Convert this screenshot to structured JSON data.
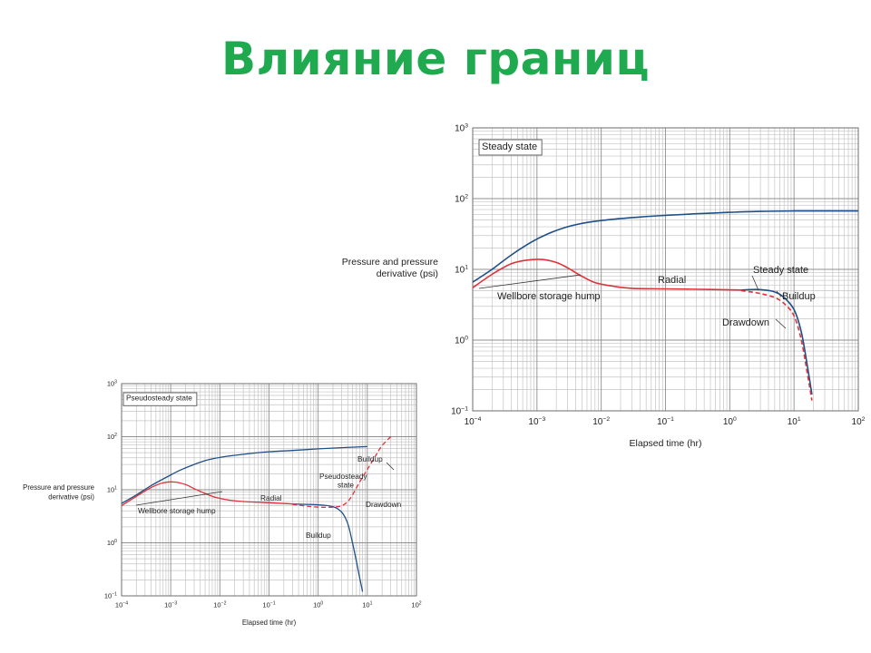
{
  "slide": {
    "title": "Влияние границ",
    "title_color": "#1faa4f"
  },
  "colors": {
    "pressure": "#1f4f88",
    "derivative": "#e0313a",
    "grid_major": "#8f8f8f",
    "grid_minor": "#c4c4c4"
  },
  "chart_data": [
    {
      "type": "line",
      "xlabel": "Elapsed time (hr)",
      "ylabel": [
        "Pressure and pressure",
        "derivative (psi)"
      ],
      "xscale": "log",
      "yscale": "log",
      "xlim": [
        0.0001,
        100
      ],
      "ylim": [
        0.1,
        1000
      ],
      "grid": true,
      "x_ticks": [
        {
          "value": 0.0001,
          "base": "10",
          "exp": "−4"
        },
        {
          "value": 0.001,
          "base": "10",
          "exp": "−3"
        },
        {
          "value": 0.01,
          "base": "10",
          "exp": "−2"
        },
        {
          "value": 0.1,
          "base": "10",
          "exp": "−1"
        },
        {
          "value": 1,
          "base": "10",
          "exp": "0"
        },
        {
          "value": 10,
          "base": "10",
          "exp": "1"
        },
        {
          "value": 100,
          "base": "10",
          "exp": "2"
        }
      ],
      "y_ticks": [
        {
          "value": 0.1,
          "base": "10",
          "exp": "−1"
        },
        {
          "value": 1,
          "base": "10",
          "exp": "0"
        },
        {
          "value": 10,
          "base": "10",
          "exp": "1"
        },
        {
          "value": 100,
          "base": "10",
          "exp": "2"
        },
        {
          "value": 1000,
          "base": "10",
          "exp": "3"
        }
      ],
      "series": [
        {
          "role": "pressure",
          "style": "solid",
          "x": [
            0.0001,
            0.0002,
            0.0004,
            0.0008,
            0.0015,
            0.003,
            0.006,
            0.015,
            0.04,
            0.1,
            0.3,
            1,
            3,
            10,
            30,
            100
          ],
          "y": [
            6.6,
            10,
            16,
            24,
            32,
            40,
            46,
            51,
            55,
            58,
            61,
            64,
            66,
            67,
            67,
            67
          ]
        },
        {
          "role": "derivative",
          "style": "solid",
          "x": [
            0.0001,
            0.0002,
            0.0004,
            0.0007,
            0.0012,
            0.002,
            0.003,
            0.005,
            0.008,
            0.015,
            0.03,
            0.1,
            0.5,
            1.5
          ],
          "y": [
            5.5,
            8.5,
            12,
            13.5,
            13.8,
            12.5,
            10.5,
            8,
            6.5,
            5.8,
            5.4,
            5.3,
            5.2,
            5.1
          ]
        },
        {
          "role": "pressure",
          "style": "solid",
          "x": [
            1.5,
            2.5,
            3.5,
            5,
            7,
            10,
            13,
            16,
            19
          ],
          "y": [
            5.1,
            5.2,
            5.1,
            4.8,
            4.0,
            2.7,
            1.3,
            0.45,
            0.17
          ]
        },
        {
          "role": "derivative",
          "style": "dashed",
          "x": [
            1.5,
            2.5,
            3.5,
            5,
            7,
            10,
            13,
            16,
            19
          ],
          "y": [
            5.0,
            4.7,
            4.4,
            4.0,
            3.3,
            2.2,
            1.0,
            0.35,
            0.14
          ]
        }
      ],
      "annotations": [
        {
          "id": "label-steady-state-box",
          "text": "Steady state",
          "boxed": true
        },
        {
          "id": "label-wellbore-storage-hump",
          "text": "Wellbore storage hump"
        },
        {
          "id": "label-radial",
          "text": "Radial"
        },
        {
          "id": "label-steady-state",
          "text": "Steady state"
        },
        {
          "id": "label-buildup",
          "text": "Buildup"
        },
        {
          "id": "label-drawdown",
          "text": "Drawdown"
        }
      ]
    },
    {
      "type": "line",
      "xlabel": "Elapsed time (hr)",
      "ylabel": [
        "Pressure and pressure",
        "derivative (psi)"
      ],
      "xscale": "log",
      "yscale": "log",
      "xlim": [
        0.0001,
        100
      ],
      "ylim": [
        0.1,
        1000
      ],
      "grid": true,
      "x_ticks": [
        {
          "value": 0.0001,
          "base": "10",
          "exp": "−4"
        },
        {
          "value": 0.001,
          "base": "10",
          "exp": "−3"
        },
        {
          "value": 0.01,
          "base": "10",
          "exp": "−2"
        },
        {
          "value": 0.1,
          "base": "10",
          "exp": "−1"
        },
        {
          "value": 1,
          "base": "10",
          "exp": "0"
        },
        {
          "value": 10,
          "base": "10",
          "exp": "1"
        },
        {
          "value": 100,
          "base": "10",
          "exp": "2"
        }
      ],
      "y_ticks": [
        {
          "value": 0.1,
          "base": "10",
          "exp": "−1"
        },
        {
          "value": 1,
          "base": "10",
          "exp": "0"
        },
        {
          "value": 10,
          "base": "10",
          "exp": "1"
        },
        {
          "value": 100,
          "base": "10",
          "exp": "2"
        },
        {
          "value": 1000,
          "base": "10",
          "exp": "3"
        }
      ],
      "series": [
        {
          "role": "pressure",
          "style": "solid",
          "x": [
            0.0001,
            0.0002,
            0.0004,
            0.0008,
            0.0015,
            0.003,
            0.006,
            0.015,
            0.04,
            0.1,
            0.3,
            1,
            3,
            10
          ],
          "y": [
            5.5,
            8,
            12,
            17,
            23,
            30,
            37,
            43,
            48,
            52,
            55,
            59,
            62,
            65
          ]
        },
        {
          "role": "derivative",
          "style": "solid",
          "x": [
            0.0001,
            0.0002,
            0.0004,
            0.0007,
            0.0012,
            0.002,
            0.003,
            0.005,
            0.008,
            0.015,
            0.03,
            0.1,
            0.3
          ],
          "y": [
            5,
            7.5,
            11,
            13.5,
            14,
            12.5,
            10.5,
            8.5,
            7.2,
            6.4,
            6,
            5.7,
            5.4
          ]
        },
        {
          "role": "pressure",
          "style": "solid",
          "x": [
            0.3,
            1,
            2,
            3,
            4,
            5,
            6,
            7,
            8
          ],
          "y": [
            5.4,
            5.2,
            4.8,
            3.8,
            2.3,
            1.0,
            0.45,
            0.22,
            0.12
          ]
        },
        {
          "role": "derivative",
          "style": "dashed",
          "x": [
            0.3,
            0.6,
            1,
            2,
            3,
            4,
            5,
            7,
            10,
            15,
            20,
            30
          ],
          "y": [
            5.3,
            4.9,
            4.7,
            4.7,
            5.0,
            6.0,
            8.0,
            14,
            24,
            45,
            68,
            100
          ]
        }
      ],
      "annotations": [
        {
          "id": "label-pseudosteady-state-box",
          "text": "Pseudosteady state",
          "boxed": true
        },
        {
          "id": "label-wellbore-storage-hump",
          "text": "Wellbore storage hump"
        },
        {
          "id": "label-radial",
          "text": "Radial"
        },
        {
          "id": "label-buildup-upper",
          "text": "Buildup"
        },
        {
          "id": "label-pseudosteady-state",
          "text": "Pseudosteady state"
        },
        {
          "id": "label-drawdown",
          "text": "Drawdown"
        },
        {
          "id": "label-buildup-lower",
          "text": "Buildup"
        }
      ]
    }
  ]
}
